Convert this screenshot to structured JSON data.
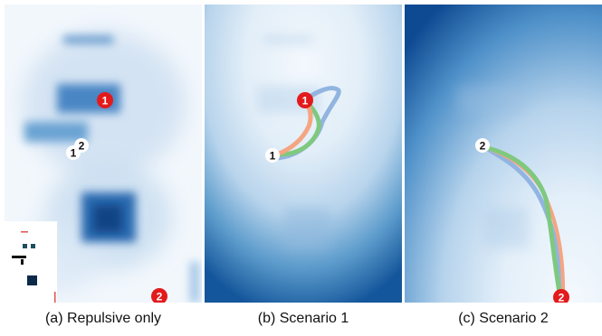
{
  "panels": [
    {
      "caption": "(a) Repulsive only",
      "markers": [
        {
          "label": "1",
          "style": "red"
        },
        {
          "label": "1",
          "style": "white"
        },
        {
          "label": "2",
          "style": "white"
        },
        {
          "label": "2",
          "style": "red"
        }
      ]
    },
    {
      "caption": "(b) Scenario 1",
      "markers": [
        {
          "label": "1",
          "style": "red"
        },
        {
          "label": "1",
          "style": "white"
        }
      ]
    },
    {
      "caption": "(c) Scenario 2",
      "markers": [
        {
          "label": "2",
          "style": "white"
        },
        {
          "label": "2",
          "style": "red"
        }
      ]
    }
  ],
  "colors": {
    "field_light": "#eef4fb",
    "field_dark": "#08306b",
    "marker_red": "#e31a1c",
    "path_orange": "#f4a582",
    "path_green": "#7fc97f",
    "path_blue": "#92b4e0"
  }
}
